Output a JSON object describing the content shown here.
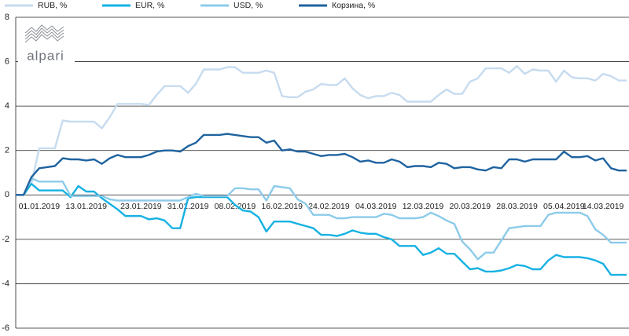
{
  "logo": "alpari",
  "chart_data": {
    "type": "line",
    "categories": [
      null,
      null,
      null,
      "01.01.2019",
      null,
      null,
      null,
      null,
      null,
      "13.01.2019",
      null,
      null,
      null,
      null,
      null,
      null,
      "23.01.2019",
      null,
      null,
      null,
      null,
      null,
      "31.01.2019",
      null,
      null,
      null,
      null,
      null,
      "08.02.2019",
      null,
      null,
      null,
      null,
      null,
      "16.02.2019",
      null,
      null,
      null,
      null,
      null,
      "24.02.2019",
      null,
      null,
      null,
      null,
      null,
      "04.03.2019",
      null,
      null,
      null,
      null,
      null,
      "12.03.2019",
      null,
      null,
      null,
      null,
      null,
      "20.03.2019",
      null,
      null,
      null,
      null,
      null,
      "28.03.2019",
      null,
      null,
      null,
      null,
      null,
      "05.04.2019",
      null,
      null,
      null,
      null,
      "14.03.2019",
      null,
      null,
      null
    ],
    "series": [
      {
        "name": "RUB, %",
        "color": "#c6dbef",
        "values": [
          0,
          0,
          0.5,
          2.1,
          2.1,
          2.1,
          3.35,
          3.3,
          3.3,
          3.3,
          3.3,
          3.0,
          3.5,
          4.1,
          4.1,
          4.1,
          4.1,
          4.05,
          4.5,
          4.9,
          4.9,
          4.9,
          4.6,
          5.0,
          5.65,
          5.65,
          5.65,
          5.75,
          5.75,
          5.5,
          5.5,
          5.5,
          5.6,
          5.5,
          4.45,
          4.4,
          4.4,
          4.65,
          4.75,
          5.0,
          4.95,
          4.95,
          5.25,
          4.8,
          4.5,
          4.35,
          4.45,
          4.45,
          4.6,
          4.5,
          4.2,
          4.2,
          4.2,
          4.2,
          4.5,
          4.75,
          4.55,
          4.55,
          5.1,
          5.25,
          5.7,
          5.7,
          5.7,
          5.5,
          5.8,
          5.45,
          5.65,
          5.6,
          5.6,
          5.1,
          5.6,
          5.3,
          5.25,
          5.25,
          5.15,
          5.45,
          5.35,
          5.15,
          5.15
        ]
      },
      {
        "name": "EUR, %",
        "color": "#17b1e3",
        "values": [
          0,
          0,
          0.5,
          0.2,
          0.2,
          0.2,
          0.2,
          -0.1,
          0.4,
          0.15,
          0.15,
          -0.15,
          -0.4,
          -0.65,
          -0.95,
          -0.95,
          -0.95,
          -1.1,
          -1.05,
          -1.15,
          -1.5,
          -1.5,
          -0.15,
          -0.1,
          -0.1,
          -0.1,
          -0.1,
          -0.1,
          -0.45,
          -0.7,
          -0.75,
          -1.0,
          -1.65,
          -1.2,
          -1.2,
          -1.2,
          -1.3,
          -1.4,
          -1.5,
          -1.8,
          -1.8,
          -1.85,
          -1.75,
          -1.6,
          -1.7,
          -1.75,
          -1.75,
          -1.9,
          -2.0,
          -2.3,
          -2.3,
          -2.3,
          -2.7,
          -2.6,
          -2.4,
          -2.65,
          -2.65,
          -3.0,
          -3.35,
          -3.3,
          -3.45,
          -3.45,
          -3.4,
          -3.3,
          -3.15,
          -3.2,
          -3.35,
          -3.35,
          -2.95,
          -2.7,
          -2.8,
          -2.8,
          -2.8,
          -2.85,
          -2.95,
          -3.1,
          -3.6,
          -3.6,
          -3.6
        ]
      },
      {
        "name": "USD, %",
        "color": "#8ccbea",
        "values": [
          0,
          0,
          0.75,
          0.6,
          0.6,
          0.6,
          0.6,
          -0.05,
          -0.05,
          -0.05,
          -0.05,
          -0.05,
          -0.2,
          -0.25,
          -0.25,
          -0.25,
          -0.25,
          -0.25,
          -0.25,
          -0.25,
          -0.25,
          -0.25,
          -0.1,
          0.05,
          -0.05,
          -0.05,
          -0.05,
          -0.05,
          0.3,
          0.3,
          0.25,
          0.25,
          -0.25,
          0.4,
          0.35,
          0.3,
          -0.2,
          -0.4,
          -0.9,
          -0.9,
          -0.9,
          -1.05,
          -1.05,
          -1.0,
          -1.0,
          -1.0,
          -1.0,
          -0.85,
          -0.9,
          -1.05,
          -1.05,
          -1.05,
          -1.0,
          -0.8,
          -0.95,
          -1.15,
          -1.3,
          -2.1,
          -2.45,
          -2.9,
          -2.6,
          -2.6,
          -2.05,
          -1.5,
          -1.45,
          -1.4,
          -1.4,
          -1.4,
          -0.9,
          -0.8,
          -0.8,
          -0.8,
          -0.8,
          -0.95,
          -1.55,
          -1.8,
          -2.15,
          -2.15,
          -2.15
        ]
      },
      {
        "name": "Корзина, %",
        "color": "#1f63a0",
        "values": [
          0,
          0,
          0.8,
          1.2,
          1.25,
          1.3,
          1.65,
          1.6,
          1.6,
          1.55,
          1.6,
          1.4,
          1.65,
          1.8,
          1.7,
          1.7,
          1.7,
          1.8,
          1.95,
          2.0,
          2.0,
          1.95,
          2.2,
          2.35,
          2.7,
          2.7,
          2.7,
          2.75,
          2.7,
          2.65,
          2.6,
          2.6,
          2.35,
          2.45,
          2.0,
          2.05,
          1.95,
          1.95,
          1.85,
          1.75,
          1.8,
          1.8,
          1.85,
          1.7,
          1.5,
          1.55,
          1.45,
          1.45,
          1.6,
          1.5,
          1.25,
          1.3,
          1.3,
          1.25,
          1.45,
          1.4,
          1.2,
          1.25,
          1.25,
          1.15,
          1.1,
          1.25,
          1.2,
          1.6,
          1.6,
          1.5,
          1.6,
          1.6,
          1.6,
          1.6,
          1.95,
          1.7,
          1.7,
          1.75,
          1.55,
          1.65,
          1.2,
          1.1,
          1.1
        ]
      }
    ],
    "ylim": [
      -6,
      8
    ],
    "yticks": [
      -6,
      -4,
      -2,
      0,
      2,
      4,
      6,
      8
    ],
    "grid": true,
    "legend": "top"
  }
}
